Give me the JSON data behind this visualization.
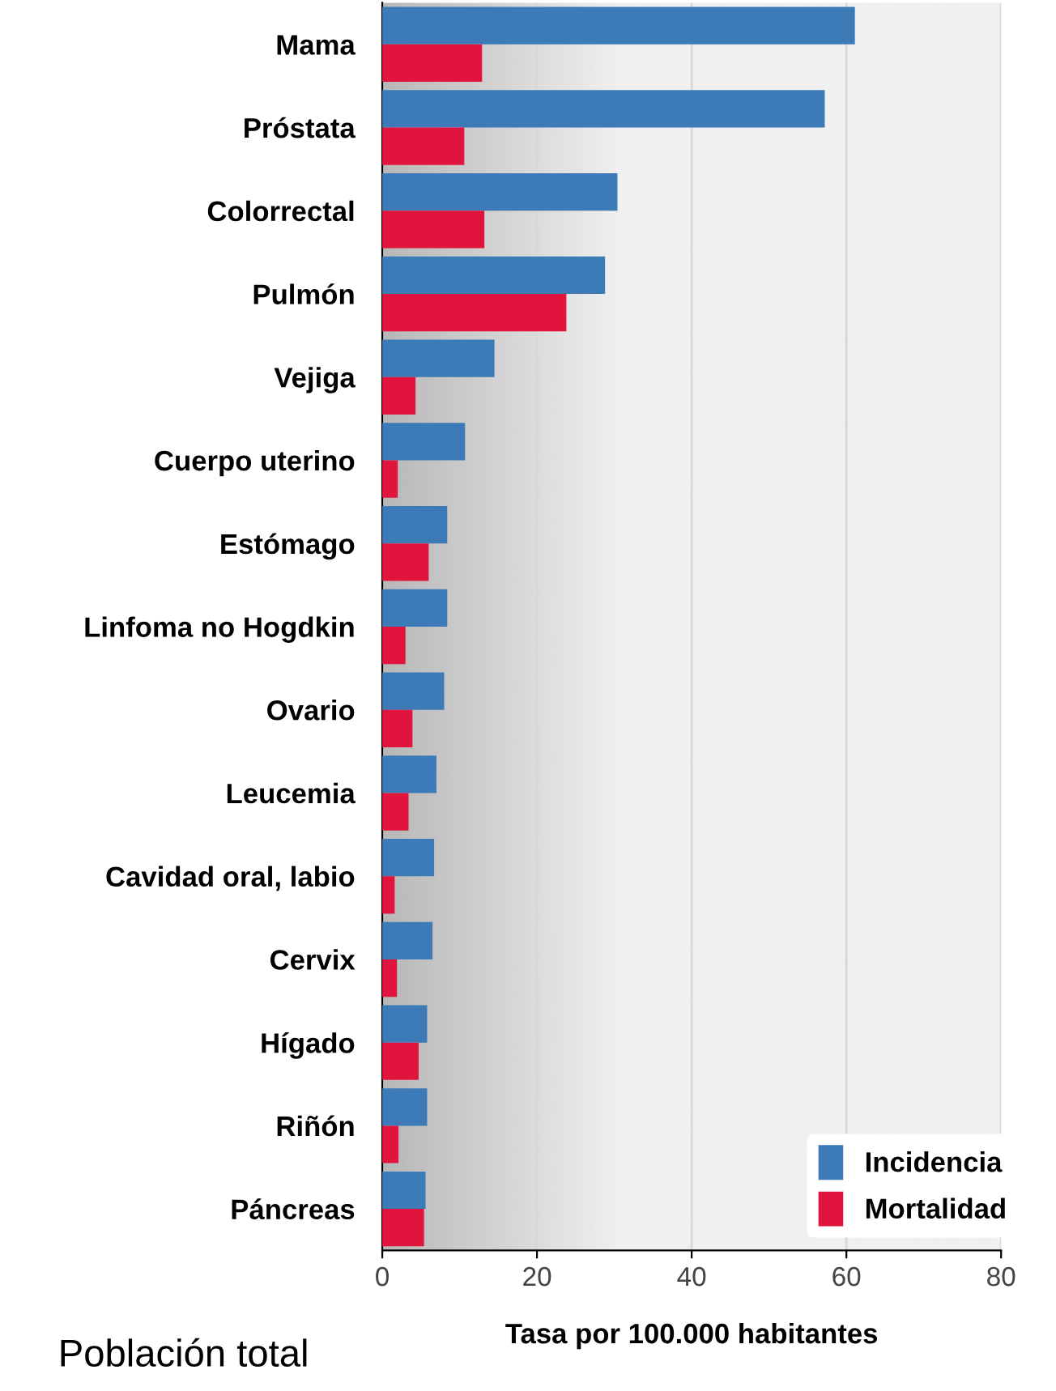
{
  "chart_data": {
    "type": "bar",
    "orientation": "horizontal",
    "categories": [
      "Mama",
      "Próstata",
      "Colorrectal",
      "Pulmón",
      "Vejiga",
      "Cuerpo uterino",
      "Estómago",
      "Linfoma no Hogdkin",
      "Ovario",
      "Leucemia",
      "Cavidad oral, labio",
      "Cervix",
      "Hígado",
      "Riñón",
      "Páncreas"
    ],
    "series": [
      {
        "name": "Incidencia",
        "color": "#3d7ab8",
        "values": [
          61.1,
          57.2,
          30.4,
          28.8,
          14.5,
          10.7,
          8.4,
          8.4,
          8.0,
          7.0,
          6.7,
          6.5,
          5.8,
          5.8,
          5.6
        ]
      },
      {
        "name": "Mortalidad",
        "color": "#e0143c",
        "values": [
          12.9,
          10.6,
          13.2,
          23.8,
          4.3,
          2.0,
          6.0,
          3.0,
          3.9,
          3.4,
          1.6,
          1.9,
          4.7,
          2.1,
          5.4
        ]
      }
    ],
    "xlabel": "Tasa por 100.000 habitantes",
    "xlim": [
      0,
      80
    ],
    "xticks": [
      0,
      20,
      40,
      60,
      80
    ],
    "grid": "x",
    "legend": "bottom right",
    "annotations": [
      "Población total"
    ]
  }
}
